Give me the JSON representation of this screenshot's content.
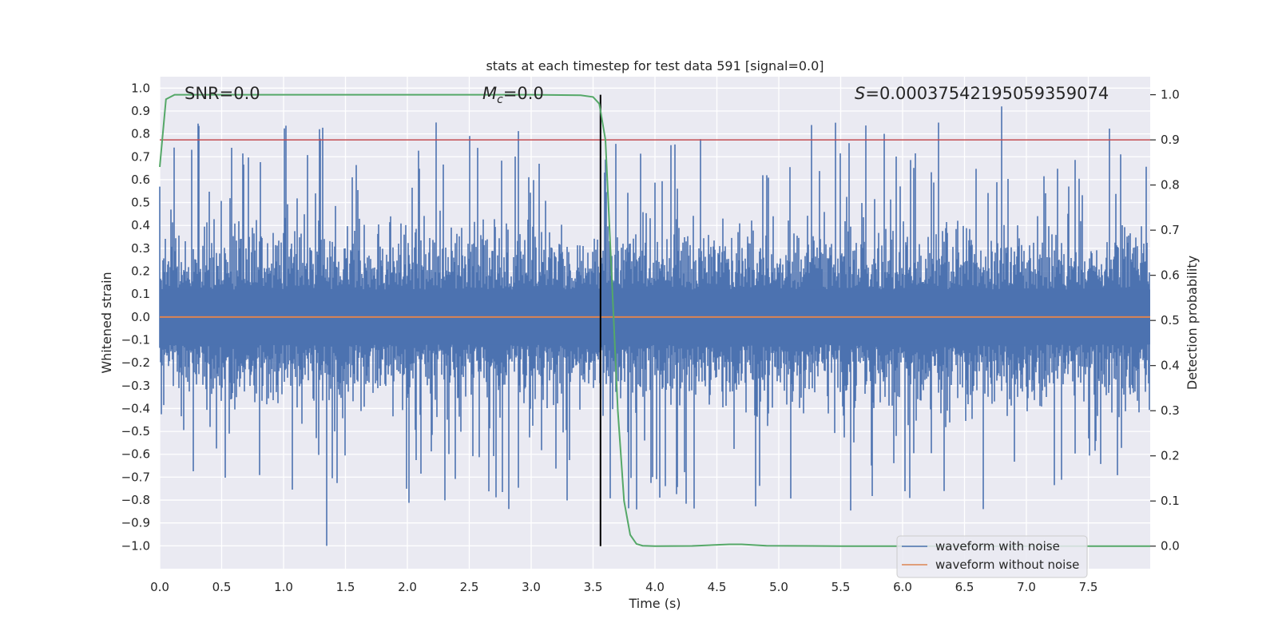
{
  "chart_data": {
    "type": "line",
    "title": "stats at each timestep for test data 591 [signal=0.0]",
    "xlabel": "Time (s)",
    "ylabel": "Whitened strain",
    "y2label": "Detection probability",
    "xlim": [
      0.0,
      8.0
    ],
    "ylim": [
      -1.1,
      1.05
    ],
    "y2lim": [
      -0.05,
      1.04
    ],
    "x_ticks": [
      "0.0",
      "0.5",
      "1.0",
      "1.5",
      "2.0",
      "2.5",
      "3.0",
      "3.5",
      "4.0",
      "4.5",
      "5.0",
      "5.5",
      "6.0",
      "6.5",
      "7.0",
      "7.5"
    ],
    "x_tick_values": [
      0.0,
      0.5,
      1.0,
      1.5,
      2.0,
      2.5,
      3.0,
      3.5,
      4.0,
      4.5,
      5.0,
      5.5,
      6.0,
      6.5,
      7.0,
      7.5
    ],
    "y_ticks": [
      "1.0",
      "0.9",
      "0.8",
      "0.7",
      "0.6",
      "0.5",
      "0.4",
      "0.3",
      "0.2",
      "0.1",
      "0.0",
      "−0.1",
      "−0.2",
      "−0.3",
      "−0.4",
      "−0.5",
      "−0.6",
      "−0.7",
      "−0.8",
      "−0.9",
      "−1.0"
    ],
    "y_tick_values": [
      1.0,
      0.9,
      0.8,
      0.7,
      0.6,
      0.5,
      0.4,
      0.3,
      0.2,
      0.1,
      0.0,
      -0.1,
      -0.2,
      -0.3,
      -0.4,
      -0.5,
      -0.6,
      -0.7,
      -0.8,
      -0.9,
      -1.0
    ],
    "y2_ticks": [
      "1.0",
      "0.9",
      "0.8",
      "0.7",
      "0.6",
      "0.5",
      "0.4",
      "0.3",
      "0.2",
      "0.1",
      "0.0"
    ],
    "y2_tick_values": [
      1.0,
      0.9,
      0.8,
      0.7,
      0.6,
      0.5,
      0.4,
      0.3,
      0.2,
      0.1,
      0.0
    ],
    "series": [
      {
        "name": "waveform with noise",
        "color": "#4c72b0",
        "axis": "left",
        "kind": "dense noise",
        "envelope_note": "dense spikes roughly within ±0.5, max ≈ 0.92 near t=6.8, min ≈ −1.0 near t=1.35",
        "x_range": [
          0.0,
          8.0
        ]
      },
      {
        "name": "waveform without noise",
        "color": "#dd8452",
        "axis": "left",
        "x": [
          0.0,
          8.0
        ],
        "values": [
          0.0,
          0.0
        ]
      },
      {
        "name": "detection probability",
        "color": "#55a868",
        "axis": "right",
        "x": [
          0.0,
          0.05,
          0.12,
          0.2,
          0.5,
          1.0,
          2.0,
          3.0,
          3.4,
          3.5,
          3.55,
          3.6,
          3.65,
          3.7,
          3.75,
          3.8,
          3.85,
          3.9,
          4.0,
          4.3,
          4.6,
          4.7,
          4.9,
          5.5,
          6.0,
          7.0,
          8.0
        ],
        "values": [
          0.84,
          0.99,
          1.0,
          1.0,
          1.0,
          1.0,
          1.0,
          1.0,
          0.999,
          0.995,
          0.98,
          0.9,
          0.6,
          0.3,
          0.1,
          0.025,
          0.005,
          0.001,
          0.0,
          0.0005,
          0.004,
          0.004,
          0.001,
          0.0,
          0.0,
          0.0,
          0.0
        ]
      }
    ],
    "threshold": {
      "value": 0.9,
      "axis": "right",
      "color": "#c44e52"
    },
    "marker_line": {
      "x": 3.56,
      "color": "#000000"
    },
    "annotations": {
      "snr": "SNR=0.0",
      "mc_symbol": "M",
      "mc_sub": "c",
      "mc_value": "=0.0",
      "s_symbol": "S",
      "s_value": "=0.00037542195059359074"
    },
    "legend": {
      "position": "bottom-right",
      "entries": [
        {
          "label": "waveform with noise",
          "color": "#4c72b0"
        },
        {
          "label": "waveform without noise",
          "color": "#dd8452"
        }
      ]
    },
    "colors": {
      "plot_bg": "#eaeaf2",
      "grid": "#ffffff"
    }
  }
}
